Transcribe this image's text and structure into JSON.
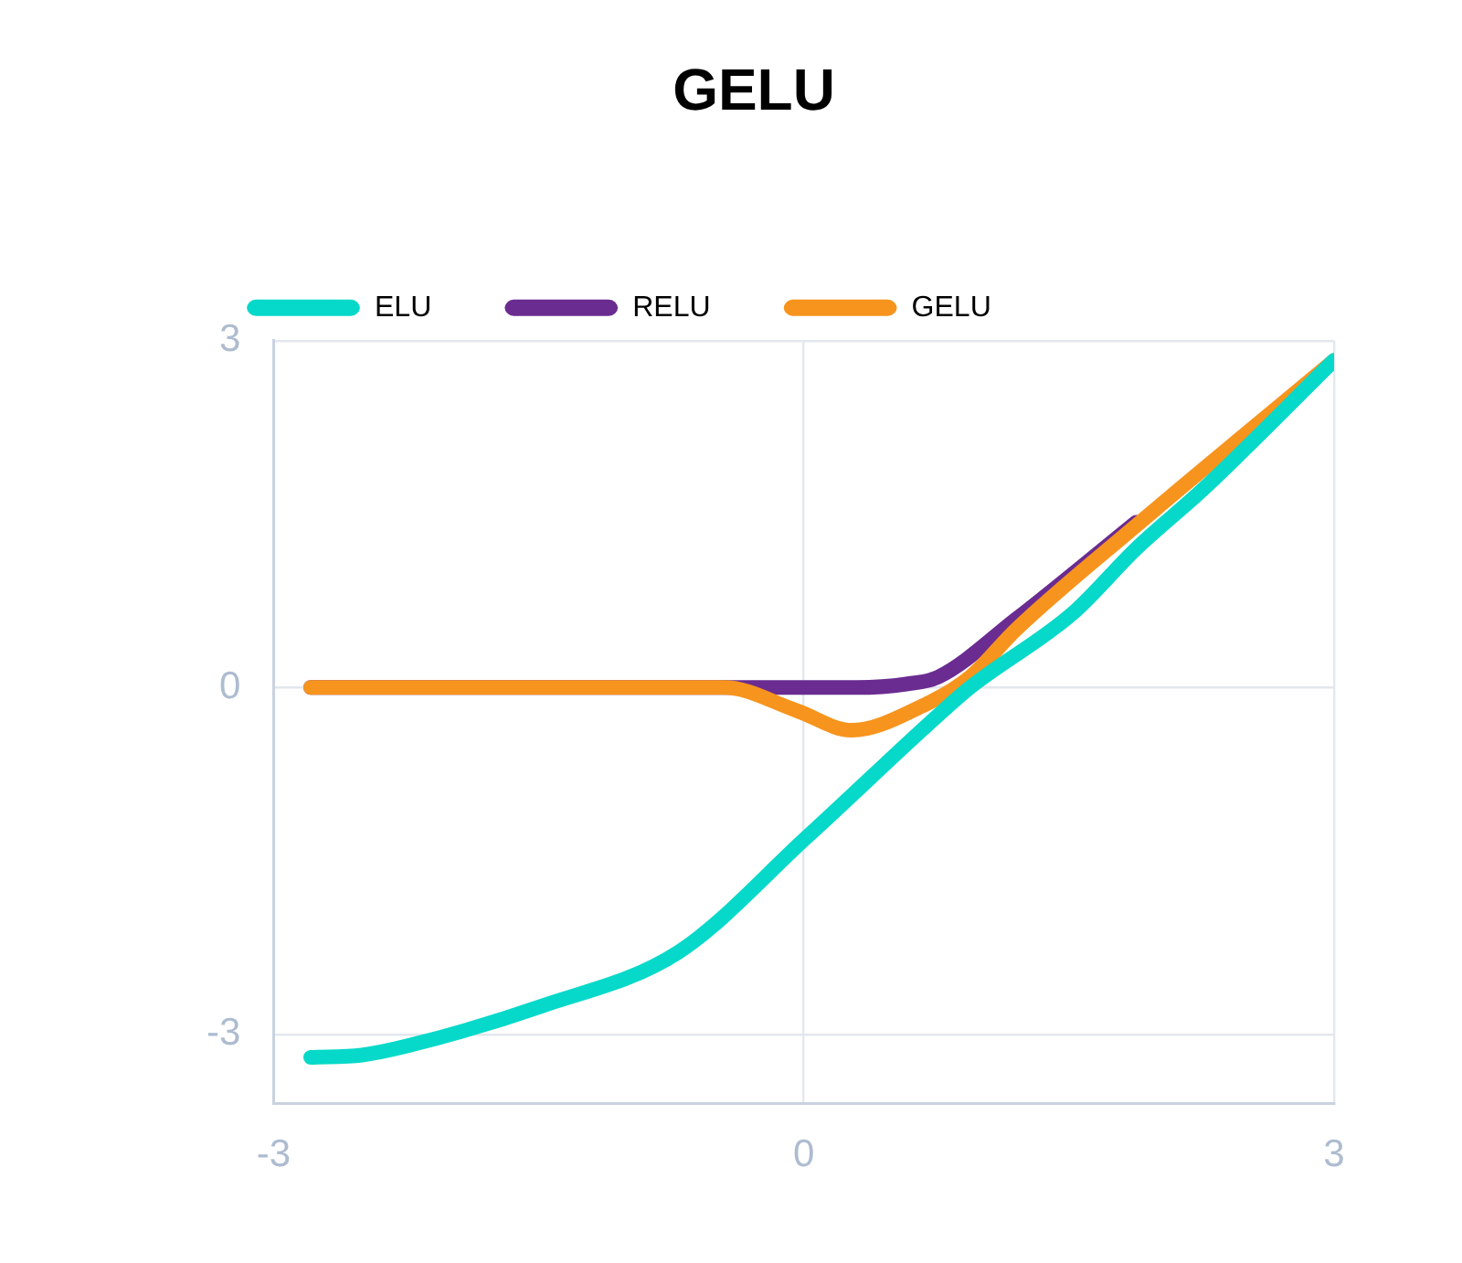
{
  "chart_data": {
    "type": "line",
    "title": "GELU",
    "xlim": [
      -3,
      3
    ],
    "xticks": [
      -3,
      0,
      3
    ],
    "ylim": [
      -3.6,
      3
    ],
    "yticks": [
      -3,
      0,
      3
    ],
    "grid": true,
    "legend": "top left",
    "marker": "none",
    "line_style": "solid",
    "series": [
      {
        "name": "ELU",
        "color": "#06d9c9",
        "x": [
          -2.79,
          -2.5,
          -2.24,
          -1.49,
          -0.71,
          0.02,
          0.76,
          0.94,
          1.52,
          1.88,
          2.27,
          3.0
        ],
        "values": [
          -3.2,
          -3.18,
          -3.1,
          -2.76,
          -2.29,
          -1.29,
          -0.24,
          0,
          0.64,
          1.2,
          1.73,
          2.83
        ]
      },
      {
        "name": "RELU",
        "color": "#6a2c91",
        "x": [
          -2.79,
          -0.5,
          0.3,
          0.58,
          0.76,
          1.2,
          1.88
        ],
        "values": [
          0,
          0,
          0,
          0.03,
          0.09,
          0.59,
          1.43
        ]
      },
      {
        "name": "GELU",
        "color": "#f7941d",
        "x": [
          -2.79,
          -0.45,
          -0.04,
          0.27,
          0.67,
          0.94,
          1.2,
          1.88,
          3.0
        ],
        "values": [
          0,
          0,
          -0.2,
          -0.37,
          -0.16,
          0.09,
          0.5,
          1.4,
          2.83
        ]
      }
    ]
  }
}
